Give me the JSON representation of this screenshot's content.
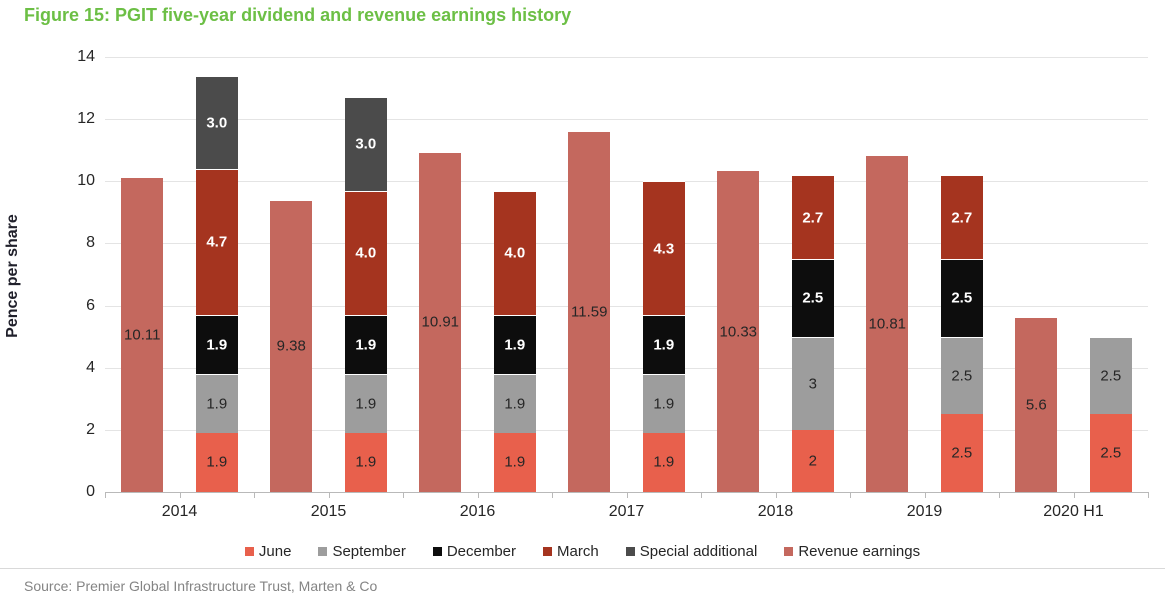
{
  "figure": {
    "title": "Figure 15: PGIT five-year dividend and revenue earnings history",
    "source": "Source: Premier Global Infrastructure Trust, Marten & Co"
  },
  "colors": {
    "title_green": "#6cbf45",
    "grid": "#e4e4e4",
    "axis": "#b9b9b9",
    "label_dark": "#262626",
    "label_light": "#ffffff",
    "divider": "#d9d9d9",
    "source_text": "#848484"
  },
  "chart_data": {
    "type": "bar",
    "title": "PGIT five-year dividend and revenue earnings history",
    "categories": [
      "2014",
      "2015",
      "2016",
      "2017",
      "2018",
      "2019",
      "2020 H1"
    ],
    "ylabel": "Pence per share",
    "xlabel": "",
    "ylim": [
      0,
      14
    ],
    "ytick_step": 2,
    "grid": true,
    "legend_position": "bottom",
    "bar_arrangement": "revenue bar on left, stacked dividend bar on right of each category",
    "series": [
      {
        "name": "June",
        "role": "stack",
        "color": "#e8604c",
        "label_color": "#262626",
        "label_bold": false,
        "values": [
          1.9,
          1.9,
          1.9,
          1.9,
          2,
          2.5,
          2.5
        ],
        "labels": [
          "1.9",
          "1.9",
          "1.9",
          "1.9",
          "2",
          "2.5",
          "2.5"
        ]
      },
      {
        "name": "September",
        "role": "stack",
        "color": "#9d9d9d",
        "label_color": "#262626",
        "label_bold": false,
        "values": [
          1.9,
          1.9,
          1.9,
          1.9,
          3,
          2.5,
          2.5
        ],
        "labels": [
          "1.9",
          "1.9",
          "1.9",
          "1.9",
          "3",
          "2.5",
          "2.5"
        ]
      },
      {
        "name": "December",
        "role": "stack",
        "color": "#0d0d0d",
        "label_color": "#ffffff",
        "label_bold": true,
        "values": [
          1.9,
          1.9,
          1.9,
          1.9,
          2.5,
          2.5,
          null
        ],
        "labels": [
          "1.9",
          "1.9",
          "1.9",
          "1.9",
          "2.5",
          "2.5",
          ""
        ]
      },
      {
        "name": "March",
        "role": "stack",
        "color": "#a5341f",
        "label_color": "#ffffff",
        "label_bold": true,
        "values": [
          4.7,
          4.0,
          4.0,
          4.3,
          2.7,
          2.7,
          null
        ],
        "labels": [
          "4.7",
          "4.0",
          "4.0",
          "4.3",
          "2.7",
          "2.7",
          ""
        ]
      },
      {
        "name": "Special additional",
        "role": "stack",
        "color": "#4b4b4b",
        "label_color": "#ffffff",
        "label_bold": true,
        "values": [
          3.0,
          3.0,
          null,
          null,
          null,
          null,
          null
        ],
        "labels": [
          "3.0",
          "3.0",
          "",
          "",
          "",
          "",
          ""
        ]
      },
      {
        "name": "Revenue earnings",
        "role": "bar",
        "color": "#c4685e",
        "label_color": "#262626",
        "label_bold": false,
        "values": [
          10.11,
          9.38,
          10.91,
          11.59,
          10.33,
          10.81,
          5.6
        ],
        "labels": [
          "10.11",
          "9.38",
          "10.91",
          "11.59",
          "10.33",
          "10.81",
          "5.6"
        ]
      }
    ]
  }
}
